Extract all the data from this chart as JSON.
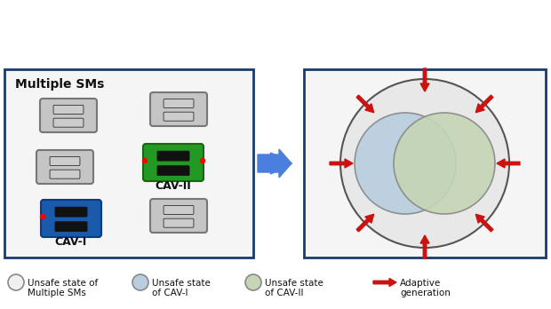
{
  "fig_width": 6.2,
  "fig_height": 3.48,
  "dpi": 100,
  "bg_color": "#ffffff",
  "panel_border_color": "#1a3a6b",
  "panel_border_lw": 2.0,
  "arrow_color": "#4a7fdd",
  "arrow_red": "#cc1111",
  "outer_circle_color": "#e8e8e8",
  "outer_circle_edge": "#555555",
  "cav1_circle_color": "#b8cede",
  "cav1_circle_edge": "#888888",
  "cav2_circle_color": "#c5d5b5",
  "cav2_circle_edge": "#888888",
  "legend_sm_color": "#f0f0f0",
  "legend_cav1_color": "#b8cede",
  "legend_cav2_color": "#c5d5b5",
  "legend_circle_edge": "#888888",
  "text_color": "#111111",
  "title_left": "Multiple SMs",
  "label_cav2": "CAV-II",
  "label_cav1": "CAV-I"
}
